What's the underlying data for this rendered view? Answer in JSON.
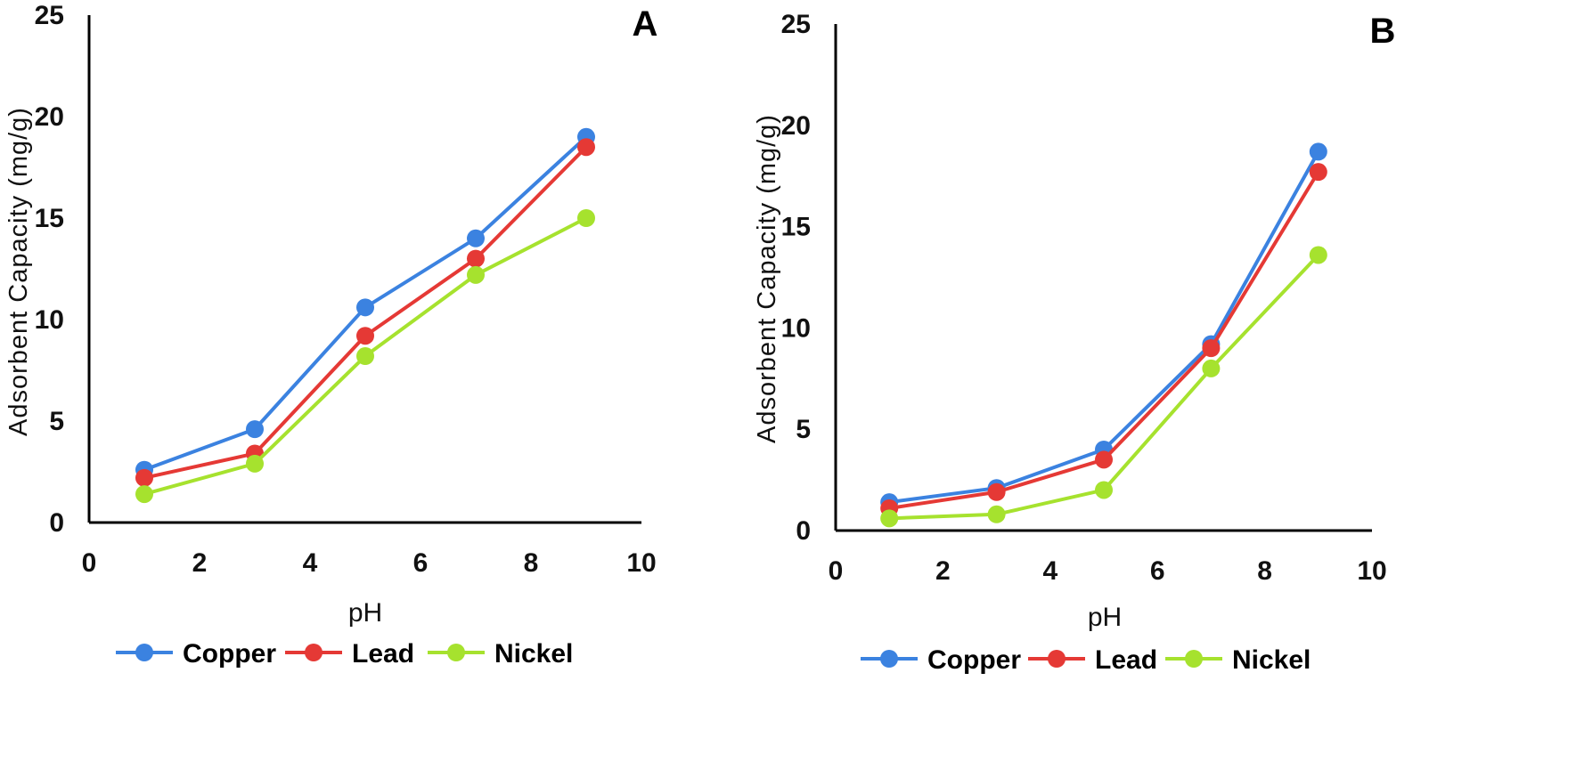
{
  "chart_data": [
    {
      "type": "line",
      "panel_label": "A",
      "xlabel": "pH",
      "ylabel": "Adsorbent Capacity (mg/g)",
      "xlim": [
        0,
        10
      ],
      "ylim": [
        0,
        25
      ],
      "xticks": [
        0,
        2,
        4,
        6,
        8,
        10
      ],
      "yticks": [
        0,
        5,
        10,
        15,
        20,
        25
      ],
      "grid": false,
      "legend_position": "bottom",
      "x": [
        1,
        3,
        5,
        7,
        9
      ],
      "series": [
        {
          "name": "Copper",
          "color": "#3b82e0",
          "values": [
            2.6,
            4.6,
            10.6,
            14.0,
            19.0
          ]
        },
        {
          "name": "Lead",
          "color": "#e53935",
          "values": [
            2.2,
            3.4,
            9.2,
            13.0,
            18.5
          ]
        },
        {
          "name": "Nickel",
          "color": "#a6e22e",
          "values": [
            1.4,
            2.9,
            8.2,
            12.2,
            15.0
          ]
        }
      ]
    },
    {
      "type": "line",
      "panel_label": "B",
      "xlabel": "pH",
      "ylabel": "Adsorbent Capacity (mg/g)",
      "xlim": [
        0,
        10
      ],
      "ylim": [
        0,
        25
      ],
      "xticks": [
        0,
        2,
        4,
        6,
        8,
        10
      ],
      "yticks": [
        0,
        5,
        10,
        15,
        20,
        25
      ],
      "grid": false,
      "legend_position": "bottom",
      "x": [
        1,
        3,
        5,
        7,
        9
      ],
      "series": [
        {
          "name": "Copper",
          "color": "#3b82e0",
          "values": [
            1.4,
            2.1,
            4.0,
            9.2,
            18.7
          ]
        },
        {
          "name": "Lead",
          "color": "#e53935",
          "values": [
            1.1,
            1.9,
            3.5,
            9.0,
            17.7
          ]
        },
        {
          "name": "Nickel",
          "color": "#a6e22e",
          "values": [
            0.6,
            0.8,
            2.0,
            8.0,
            13.6
          ]
        }
      ]
    }
  ]
}
